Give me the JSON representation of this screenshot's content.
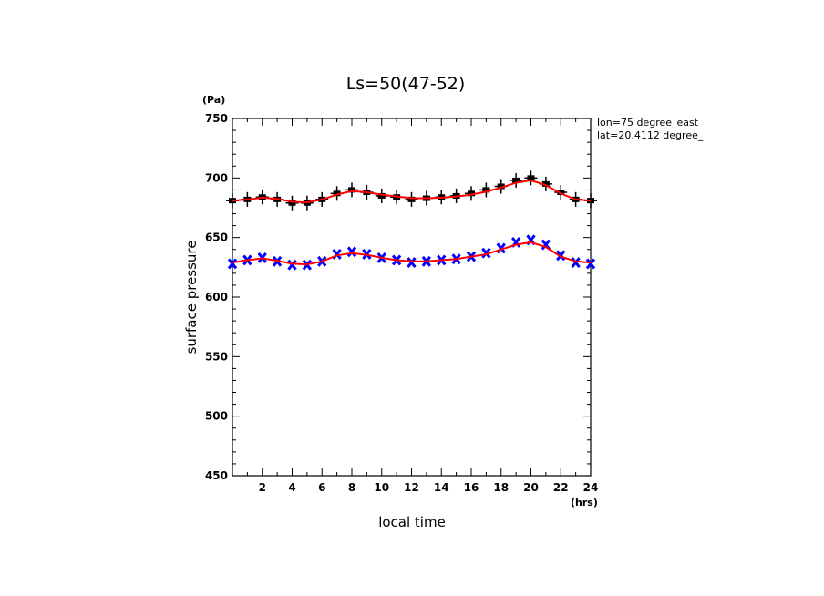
{
  "chart_data": {
    "type": "line",
    "title": "Ls=50(47-52)",
    "xlabel": "local time",
    "ylabel": "surface pressure",
    "x_unit": "(hrs)",
    "y_unit": "(Pa)",
    "annotations": [
      "lon=75 degree_east",
      "lat=20.4112 degree_"
    ],
    "xlim": [
      0,
      24
    ],
    "ylim": [
      450,
      750
    ],
    "x_ticks": [
      2,
      4,
      6,
      8,
      10,
      12,
      14,
      16,
      18,
      20,
      22,
      24
    ],
    "y_ticks": [
      450,
      500,
      550,
      600,
      650,
      700,
      750
    ],
    "grid": false,
    "x": [
      0,
      1,
      2,
      3,
      4,
      5,
      6,
      7,
      8,
      9,
      10,
      11,
      12,
      13,
      14,
      15,
      16,
      17,
      18,
      19,
      20,
      21,
      22,
      23,
      24
    ],
    "series": [
      {
        "role": "observations-black",
        "color": "#000000",
        "marker": "plus-square",
        "values": [
          681,
          682,
          684,
          682,
          679,
          679,
          682,
          687,
          690,
          688,
          685,
          684,
          682,
          683,
          684,
          685,
          687,
          690,
          693,
          698,
          700,
          695,
          688,
          682,
          681
        ]
      },
      {
        "role": "fit-upper",
        "color": "#ff0000",
        "style": "line",
        "values": [
          681,
          682,
          683.5,
          682.5,
          680,
          679.5,
          682,
          686,
          689,
          688,
          686,
          684.5,
          683,
          683,
          683.5,
          684.5,
          686,
          688.5,
          692,
          696,
          698,
          694,
          687,
          682,
          681
        ]
      },
      {
        "role": "observations-blue",
        "color": "#0000ff",
        "marker": "x",
        "values": [
          628,
          631,
          633,
          630,
          627,
          627,
          630,
          636,
          638,
          636,
          633,
          631,
          629,
          630,
          631,
          632,
          634,
          637,
          641,
          646,
          648,
          644,
          635,
          629,
          628
        ]
      },
      {
        "role": "fit-lower",
        "color": "#ff0000",
        "style": "line",
        "values": [
          629,
          631,
          632.5,
          630.5,
          628,
          627.5,
          630,
          635,
          637,
          635.5,
          633,
          631,
          630,
          630,
          631,
          632,
          634,
          636,
          640,
          644,
          646,
          642,
          634,
          630,
          629
        ]
      }
    ]
  }
}
